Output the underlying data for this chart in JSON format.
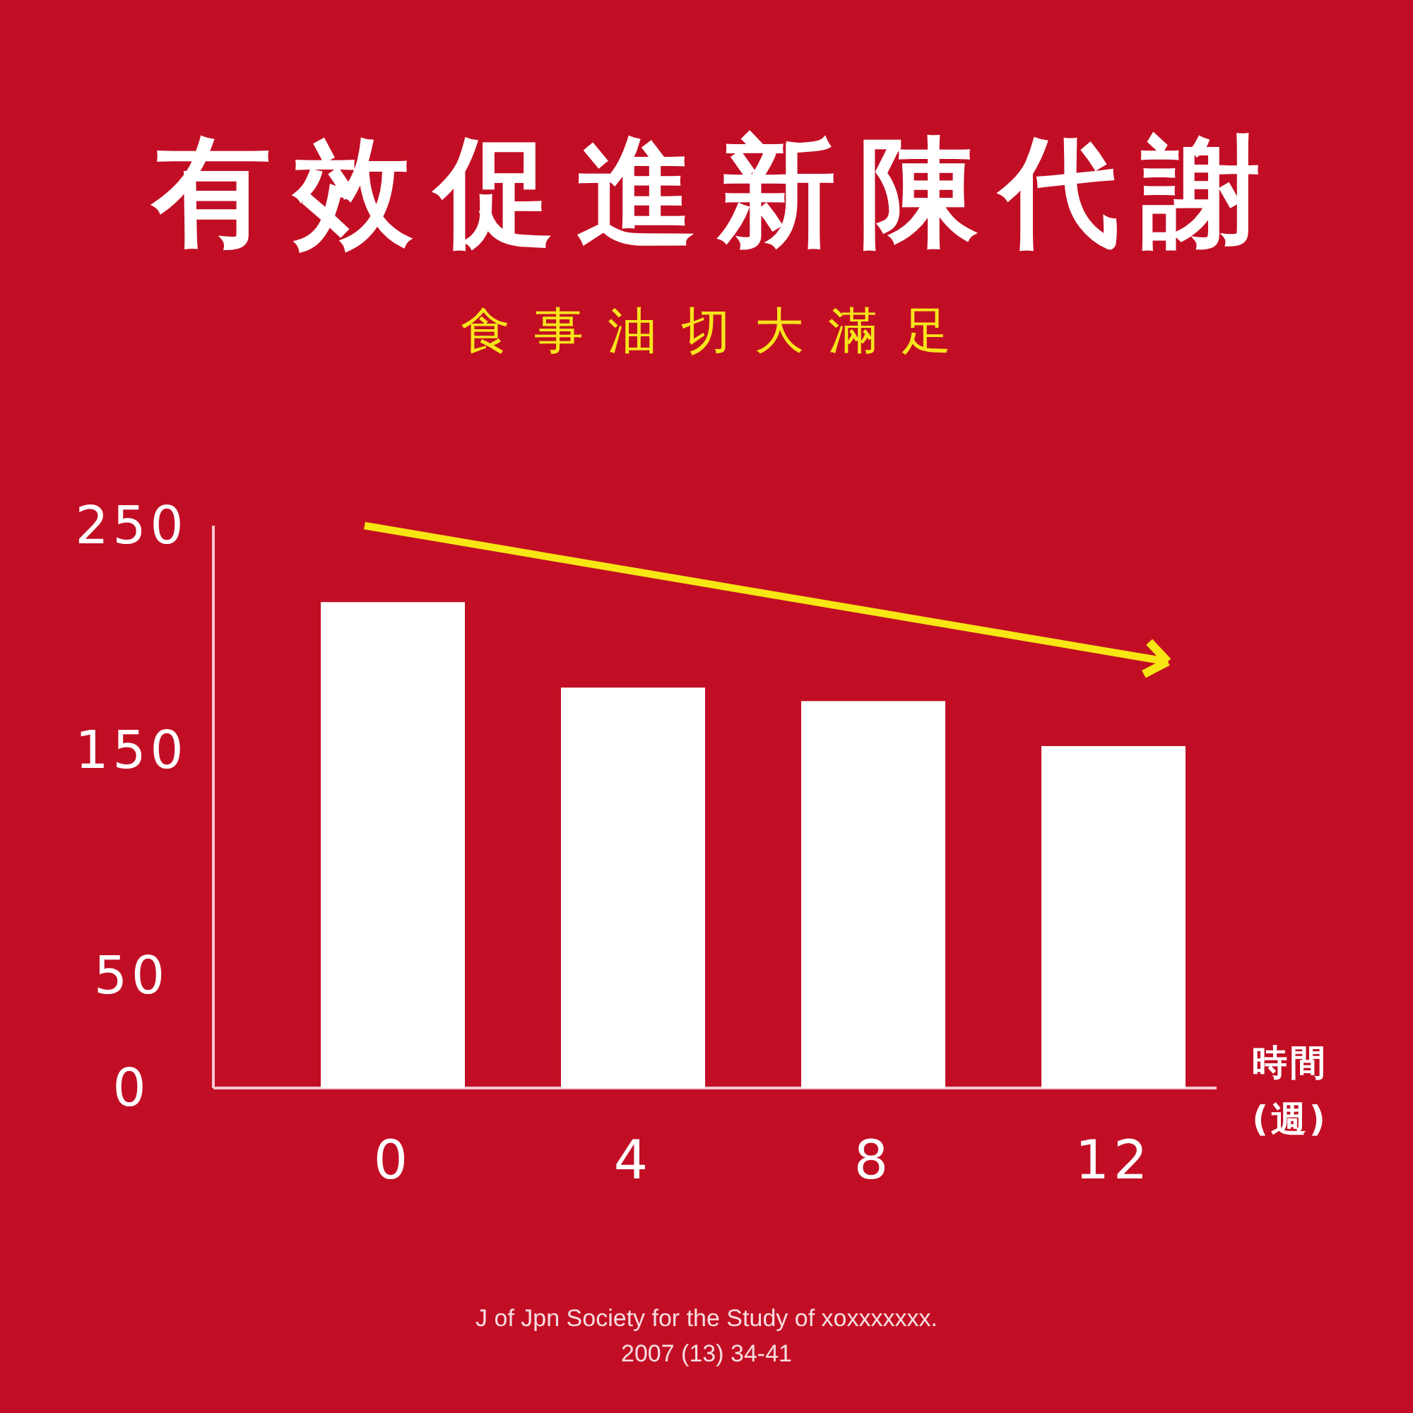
{
  "chart_data": {
    "type": "bar",
    "title": "有效促進新陳代謝",
    "subtitle": "食事油切大滿足",
    "categories": [
      "0",
      "4",
      "8",
      "12"
    ],
    "values": [
      216,
      178,
      172,
      152
    ],
    "color": "#ffffff",
    "xlabel": "時間\n(週)",
    "ylim": [
      0,
      250
    ],
    "yticks": [
      0,
      50,
      150,
      250
    ],
    "annotations": [
      "J of Jpn Society for the Study of xoxxxxxxx.",
      "2007 (13) 34-41"
    ]
  }
}
